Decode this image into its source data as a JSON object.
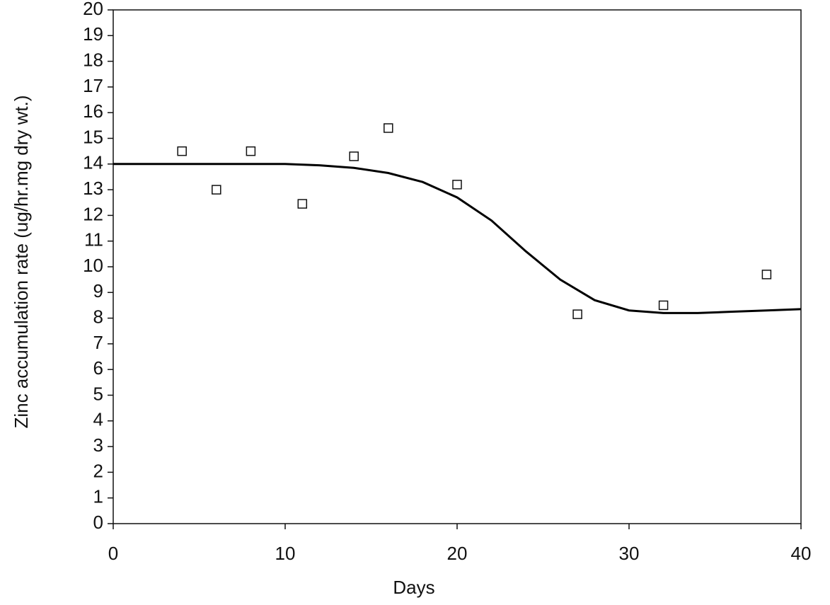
{
  "chart_data": {
    "type": "scatter",
    "x_label": "Days",
    "y_label": "Zinc accumulation rate (ug/hr.mg dry wt.)",
    "x": [
      4,
      6,
      8,
      11,
      14,
      16,
      20,
      27,
      32,
      38
    ],
    "values": [
      14.5,
      13.0,
      14.5,
      12.45,
      14.3,
      15.4,
      13.2,
      8.15,
      8.5,
      9.7
    ],
    "color": "#111111",
    "fit": {
      "color": "#000000",
      "x": [
        0,
        2,
        4,
        6,
        8,
        10,
        12,
        14,
        16,
        18,
        20,
        22,
        24,
        26,
        28,
        30,
        32,
        34,
        36,
        38,
        40
      ],
      "values": [
        14,
        14,
        14,
        14,
        14,
        14,
        13.95,
        13.85,
        13.65,
        13.3,
        12.7,
        11.8,
        10.6,
        9.5,
        8.7,
        8.3,
        8.2,
        8.2,
        8.25,
        8.3,
        8.35
      ]
    },
    "xlim": [
      0,
      40
    ],
    "xticks": [
      0,
      10,
      20,
      30,
      40
    ],
    "ylim": [
      0,
      20
    ],
    "yticks": [
      0,
      1,
      2,
      3,
      4,
      5,
      6,
      7,
      8,
      9,
      10,
      11,
      12,
      13,
      14,
      15,
      16,
      17,
      18,
      19,
      20
    ]
  }
}
